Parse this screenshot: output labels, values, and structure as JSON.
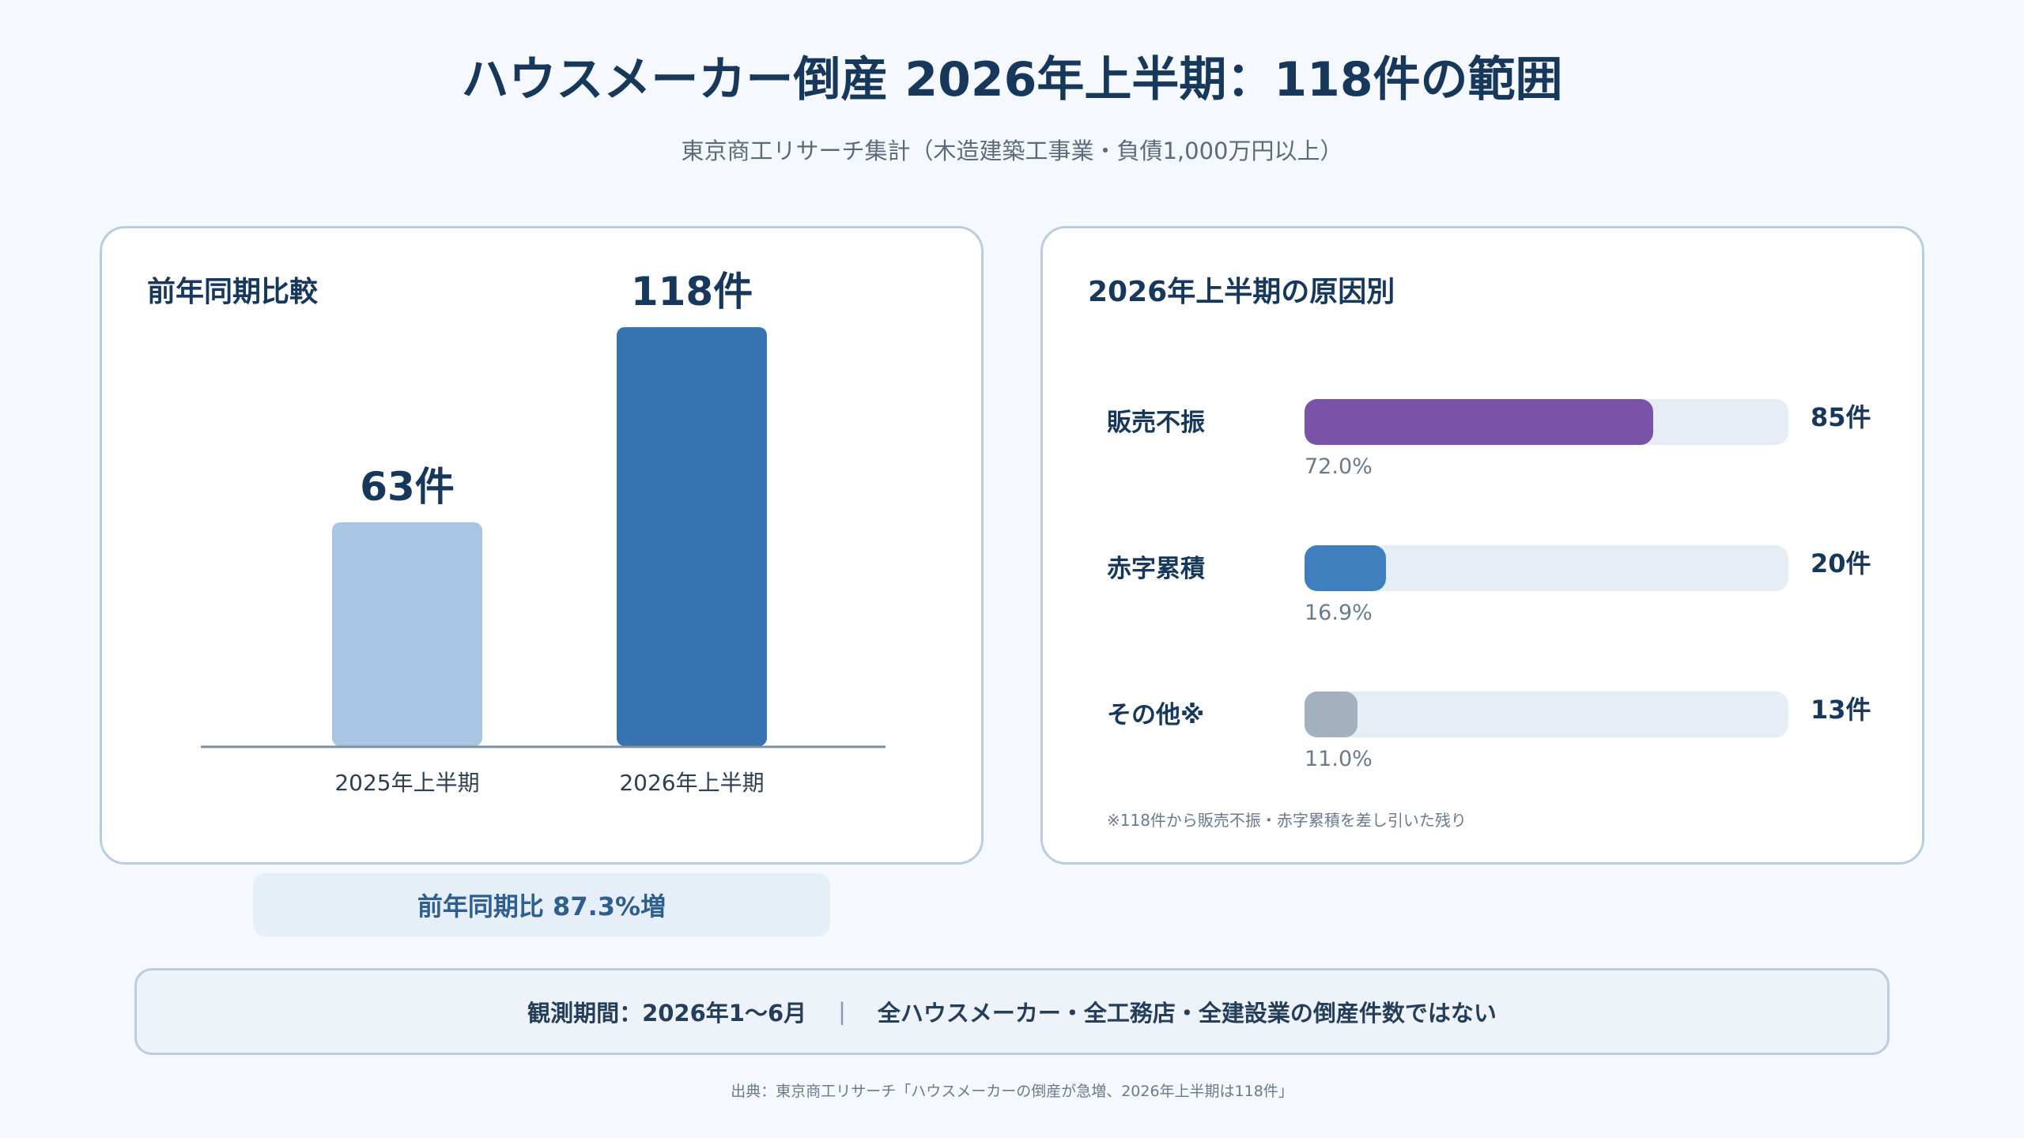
{
  "title": "ハウスメーカー倒産 2026年上半期：118件の範囲",
  "subtitle": "東京商工リサーチ集計（木造建築工事業・負債1,000万円以上）",
  "left_panel": {
    "title": "前年同期比較"
  },
  "right_panel": {
    "title": "2026年上半期の原因別"
  },
  "growth_text": "前年同期比 87.3%増",
  "info": {
    "period": "観測期間：2026年1〜6月",
    "separator": "|",
    "note": "全ハウスメーカー・全工務店・全建設業の倒産件数ではない"
  },
  "footnote": "※118件から販売不振・赤字累積を差し引いた残り",
  "source": "出典：東京商工リサーチ「ハウスメーカーの倒産が急増、2026年上半期は118件」",
  "chart_data": [
    {
      "type": "bar",
      "title": "前年同期比較",
      "categories": [
        "2025年上半期",
        "2026年上半期"
      ],
      "values": [
        63,
        118
      ],
      "data_labels": [
        "63件",
        "118件"
      ],
      "colors": [
        "#a9c5e4",
        "#3673b0"
      ],
      "ylim": [
        0,
        118
      ],
      "grid": false
    },
    {
      "type": "bar",
      "orientation": "horizontal",
      "title": "2026年上半期の原因別",
      "categories": [
        "販売不振",
        "赤字累積",
        "その他※"
      ],
      "values": [
        85,
        20,
        13
      ],
      "value_labels": [
        "85件",
        "20件",
        "13件"
      ],
      "percent_labels": [
        "72.0%",
        "16.9%",
        "11.0%"
      ],
      "percents": [
        72.0,
        16.9,
        11.0
      ],
      "colors": [
        "#7a52a8",
        "#3f7fbd",
        "#a3b0c0"
      ],
      "track_color": "#e6edf5"
    }
  ]
}
